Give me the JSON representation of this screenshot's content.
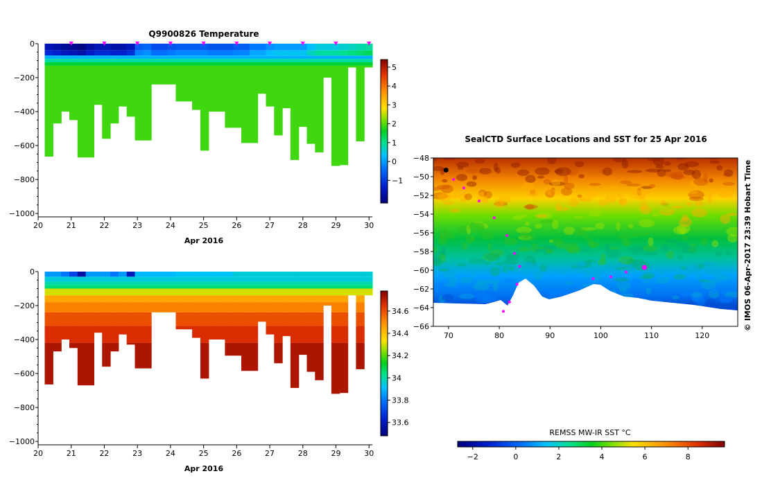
{
  "chart_data": [
    {
      "type": "heatmap",
      "title": "Q9900826  Temperature",
      "xlabel": "Apr 2016",
      "ylabel": "",
      "x_ticks": [
        "20",
        "21",
        "22",
        "23",
        "24",
        "25",
        "26",
        "27",
        "28",
        "29",
        "30"
      ],
      "y_ticks": [
        "0",
        "−200",
        "−400",
        "−600",
        "−800",
        "−1000"
      ],
      "xlim": [
        20,
        30.1
      ],
      "ylim": [
        -1020,
        0
      ],
      "colorbar_ticks": [
        "−1",
        "0",
        "1",
        "2",
        "3",
        "4",
        "5"
      ],
      "colorbar_range": [
        -2.2,
        5.4
      ],
      "profile_markers_day": [
        21,
        22,
        23,
        24,
        25,
        26,
        27,
        28,
        29,
        30
      ],
      "profiles": {
        "time": [
          20.3,
          20.55,
          20.8,
          21.05,
          21.3,
          21.55,
          21.8,
          22.05,
          22.3,
          22.55,
          22.8,
          23.05,
          23.3,
          23.55,
          23.8,
          24.05,
          24.3,
          24.55,
          24.8,
          25.05,
          25.3,
          25.55,
          25.8,
          26.05,
          26.3,
          26.55,
          26.8,
          27.05,
          27.3,
          27.55,
          27.8,
          28.05,
          28.3,
          28.55,
          28.8,
          29.05,
          29.3,
          29.55,
          29.8,
          30.05
        ],
        "max_depth": [
          -665,
          -470,
          -400,
          -450,
          -670,
          -670,
          -360,
          -560,
          -470,
          -370,
          -430,
          -570,
          -570,
          -240,
          -240,
          -240,
          -340,
          -340,
          -390,
          -630,
          -400,
          -400,
          -495,
          -495,
          -585,
          -585,
          -295,
          -370,
          -540,
          -380,
          -685,
          -490,
          -590,
          -640,
          -200,
          -720,
          -715,
          -140,
          -575,
          -140
        ],
        "surface_temp": [
          -1.6,
          -1.7,
          -1.9,
          -2.0,
          -2.1,
          -1.8,
          -1.6,
          -1.6,
          -1.7,
          -1.7,
          -1.5,
          -0.6,
          -0.5,
          -0.8,
          -0.8,
          -0.7,
          -0.6,
          -0.6,
          -0.6,
          -0.6,
          -0.7,
          -0.7,
          -0.7,
          -0.6,
          -0.6,
          -0.3,
          -0.3,
          -0.1,
          0.0,
          0.0,
          0.0,
          0.0,
          0.3,
          0.5,
          0.5,
          0.5,
          0.6,
          0.7,
          0.8,
          0.9
        ],
        "deep_temp": 1.9
      }
    },
    {
      "type": "heatmap",
      "title": "",
      "xlabel": "Apr 2016",
      "ylabel": "",
      "x_ticks": [
        "20",
        "21",
        "22",
        "23",
        "24",
        "25",
        "26",
        "27",
        "28",
        "29",
        "30"
      ],
      "y_ticks": [
        "0",
        "−200",
        "−400",
        "−600",
        "−800",
        "−1000"
      ],
      "xlim": [
        20,
        30.1
      ],
      "ylim": [
        -1020,
        0
      ],
      "colorbar_ticks": [
        "33.6",
        "33.8",
        "34",
        "34.2",
        "34.4",
        "34.6"
      ],
      "colorbar_range": [
        33.48,
        34.78
      ],
      "profiles": {
        "surface_sal": [
          33.85,
          33.85,
          33.8,
          33.7,
          33.55,
          33.85,
          33.85,
          33.85,
          33.8,
          33.85,
          33.6,
          33.9,
          33.9,
          33.9,
          33.9,
          33.9,
          33.92,
          33.92,
          33.92,
          33.92,
          33.92,
          33.92,
          33.92,
          33.95,
          33.95,
          33.95,
          33.95,
          33.95,
          33.95,
          33.95,
          33.95,
          33.95,
          33.95,
          33.95,
          33.95,
          33.95,
          33.95,
          33.95,
          33.95,
          33.95
        ],
        "deep_sal": 34.72
      }
    },
    {
      "type": "heatmap",
      "title": "SealCTD Surface Locations and SST for 25 Apr 2016",
      "xlabel": "",
      "ylabel": "",
      "x_ticks": [
        "70",
        "80",
        "90",
        "100",
        "110",
        "120"
      ],
      "y_ticks": [
        "−48",
        "−50",
        "−52",
        "−54",
        "−56",
        "−58",
        "−60",
        "−62",
        "−64",
        "−66"
      ],
      "xlim": [
        67,
        127
      ],
      "ylim": [
        -66,
        -48
      ],
      "colorbar_label": "REMSS MW-IR SST °C",
      "colorbar_ticks": [
        "−2",
        "0",
        "2",
        "4",
        "6",
        "8"
      ],
      "colorbar_range": [
        -2.7,
        9.7
      ],
      "vertical_credit": "©  IMOS 06-Apr-2017 23:39 Hobart Time",
      "track": [
        [
          69.5,
          -49.3
        ],
        [
          71,
          -50.3
        ],
        [
          73,
          -51.2
        ],
        [
          76,
          -52.6
        ],
        [
          79,
          -54.4
        ],
        [
          81.5,
          -56.3
        ],
        [
          83,
          -58.2
        ],
        [
          84,
          -59.6
        ],
        [
          83.5,
          -61.5
        ],
        [
          82,
          -63.4
        ],
        [
          80.8,
          -64.4
        ],
        [
          98.5,
          -60.9
        ],
        [
          102,
          -60.7
        ],
        [
          105,
          -60.2
        ],
        [
          108.6,
          -59.7
        ]
      ]
    }
  ]
}
